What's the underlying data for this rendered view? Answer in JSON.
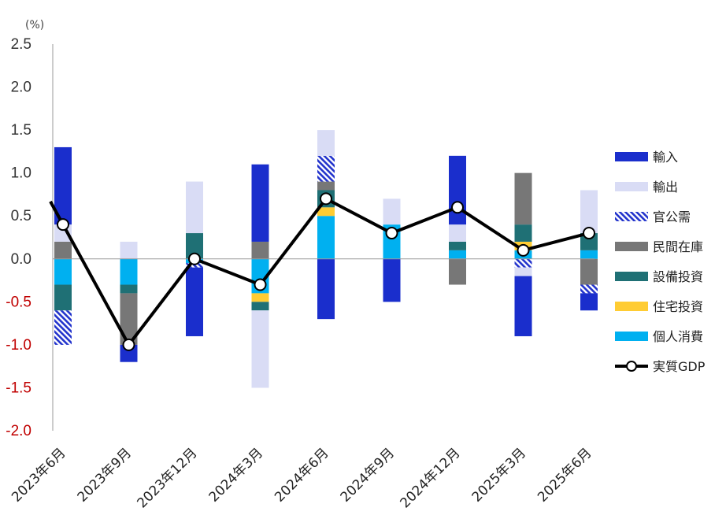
{
  "chart_data": {
    "type": "bar",
    "stacked": true,
    "unit_label": "(%)",
    "ylim": [
      -2.0,
      2.5
    ],
    "yticks": [
      "2.5",
      "2.0",
      "1.5",
      "1.0",
      "0.5",
      "0.0",
      "-0.5",
      "-1.0",
      "-1.5",
      "-2.0"
    ],
    "ytick_values": [
      2.5,
      2.0,
      1.5,
      1.0,
      0.5,
      0.0,
      -0.5,
      -1.0,
      -1.5,
      -2.0
    ],
    "negative_tick_color": "#c00000",
    "positive_tick_color": "#333333",
    "categories": [
      "2023年6月",
      "2023年9月",
      "2023年12月",
      "2024年3月",
      "2024年6月",
      "2024年9月",
      "2024年12月",
      "2025年3月",
      "2025年6月"
    ],
    "series": [
      {
        "name": "個人消費",
        "color": "#00b0f0",
        "pattern": "solid",
        "values": [
          -0.3,
          -0.3,
          -0.05,
          -0.4,
          0.5,
          0.4,
          0.1,
          0.1,
          0.1
        ]
      },
      {
        "name": "住宅投資",
        "color": "#ffcc33",
        "pattern": "solid",
        "values": [
          0.0,
          0.0,
          0.0,
          -0.1,
          0.1,
          0.0,
          0.0,
          0.1,
          0.0
        ]
      },
      {
        "name": "設備投資",
        "color": "#1f7075",
        "pattern": "solid",
        "values": [
          -0.3,
          -0.1,
          0.3,
          -0.1,
          0.2,
          0.0,
          0.1,
          0.2,
          0.2
        ]
      },
      {
        "name": "民間在庫",
        "color": "#777777",
        "pattern": "solid",
        "values": [
          0.2,
          -0.6,
          0.0,
          0.2,
          0.1,
          0.0,
          -0.3,
          0.6,
          -0.3
        ]
      },
      {
        "name": "官公需",
        "color": "#2233cc",
        "pattern": "hatch",
        "values": [
          -0.4,
          0.0,
          -0.05,
          0.0,
          0.3,
          0.0,
          0.0,
          -0.1,
          -0.1
        ]
      },
      {
        "name": "輸出",
        "color": "#d9dcf5",
        "pattern": "solid",
        "values": [
          0.2,
          0.2,
          0.6,
          -0.9,
          0.3,
          0.3,
          0.2,
          -0.1,
          0.5
        ]
      },
      {
        "name": "輸入",
        "color": "#1a2ecc",
        "pattern": "solid",
        "values": [
          0.9,
          -0.2,
          -0.8,
          0.9,
          -0.7,
          -0.5,
          0.8,
          -0.7,
          -0.2
        ]
      }
    ],
    "line_series": {
      "name": "実質GDP",
      "color": "#000000",
      "marker": "open-circle",
      "values": [
        0.4,
        -1.0,
        0.0,
        -0.3,
        0.7,
        0.3,
        0.6,
        0.1,
        0.3
      ]
    },
    "line_extends_from_left": true,
    "legend_order": [
      "輸入",
      "輸出",
      "官公需",
      "民間在庫",
      "設備投資",
      "住宅投資",
      "個人消費",
      "実質GDP"
    ],
    "legend_position": "right",
    "grid": false
  }
}
